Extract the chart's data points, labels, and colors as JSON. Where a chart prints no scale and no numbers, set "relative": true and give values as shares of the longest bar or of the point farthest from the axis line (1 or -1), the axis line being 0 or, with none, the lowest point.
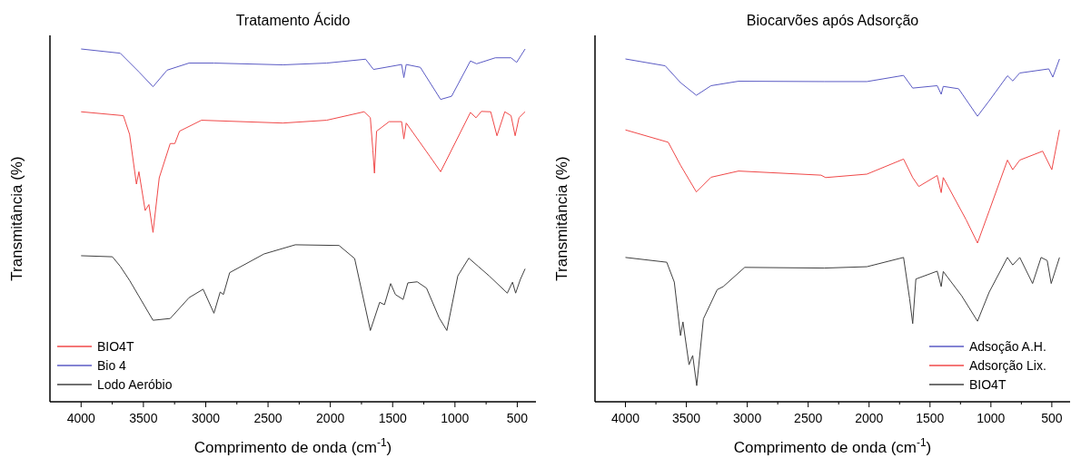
{
  "chart_data": [
    {
      "type": "line",
      "title": "Tratamento Ácido",
      "xlabel": "Comprimento de onda (cm$^{-1}$)",
      "ylabel": "Transmitância (%)",
      "relative": true,
      "legend": "bottom left",
      "marker": "none",
      "line_style": "solid",
      "grid": false,
      "xlim": [
        4250,
        350
      ],
      "xticks": [
        4000,
        {
          "value": 3750,
          "label": null
        },
        3500,
        {
          "value": 3250,
          "label": null
        },
        3000,
        {
          "value": 2750,
          "label": null
        },
        2500,
        {
          "value": 2250,
          "label": null
        },
        2000,
        {
          "value": 1750,
          "label": null
        },
        1500,
        {
          "value": 1250,
          "label": null
        },
        1000,
        {
          "value": 750,
          "label": null
        },
        500
      ],
      "series": [
        {
          "name": "BIO4T",
          "color": "#f04848",
          "x": [
            4000,
            3661,
            3611,
            3556,
            3536,
            3486,
            3456,
            3423,
            3373,
            3285,
            3248,
            3210,
            3034,
            2382,
            2030,
            1729,
            1679,
            1659,
            1646,
            1629,
            1528,
            1428,
            1410,
            1391,
            1202,
            1115,
            876,
            831,
            788,
            713,
            663,
            600,
            550,
            517,
            486,
            437
          ],
          "values": [
            0.822,
            0.811,
            0.758,
            0.617,
            0.652,
            0.542,
            0.559,
            0.48,
            0.635,
            0.732,
            0.732,
            0.767,
            0.798,
            0.79,
            0.798,
            0.822,
            0.805,
            0.714,
            0.648,
            0.767,
            0.794,
            0.794,
            0.745,
            0.79,
            0.696,
            0.652,
            0.82,
            0.805,
            0.823,
            0.822,
            0.754,
            0.822,
            0.811,
            0.754,
            0.805,
            0.822
          ]
        },
        {
          "name": "Bio 4",
          "color": "#5a5ac4",
          "x": [
            4000,
            3686,
            3536,
            3423,
            3310,
            3134,
            2934,
            2382,
            2030,
            1717,
            1654,
            1604,
            1428,
            1410,
            1391,
            1278,
            1115,
            1027,
            876,
            826,
            676,
            550,
            505,
            437
          ],
          "values": [
            1.0,
            0.988,
            0.935,
            0.893,
            0.94,
            0.96,
            0.96,
            0.955,
            0.96,
            0.971,
            0.942,
            0.945,
            0.956,
            0.919,
            0.956,
            0.948,
            0.857,
            0.866,
            0.966,
            0.958,
            0.975,
            0.975,
            0.962,
            1.0
          ]
        },
        {
          "name": "Lodo Aeróbio",
          "color": "#404040",
          "x": [
            4000,
            3749,
            3686,
            3611,
            3423,
            3285,
            3134,
            3021,
            2934,
            2884,
            2858,
            2808,
            2532,
            2281,
            1930,
            1805,
            1679,
            1604,
            1566,
            1516,
            1478,
            1416,
            1378,
            1303,
            1228,
            1127,
            1065,
            977,
            889,
            814,
            726,
            580,
            538,
            513,
            475,
            437
          ],
          "values": [
            0.414,
            0.411,
            0.384,
            0.344,
            0.231,
            0.236,
            0.295,
            0.319,
            0.251,
            0.311,
            0.304,
            0.366,
            0.419,
            0.445,
            0.443,
            0.406,
            0.202,
            0.282,
            0.275,
            0.335,
            0.304,
            0.29,
            0.337,
            0.34,
            0.322,
            0.238,
            0.202,
            0.357,
            0.407,
            0.384,
            0.357,
            0.308,
            0.339,
            0.308,
            0.347,
            0.377
          ]
        }
      ]
    },
    {
      "type": "line",
      "title": "Biocarvões após Adsorção",
      "xlabel": "Comprimento de onda (cm$^{-1}$)",
      "ylabel": "Transmitância (%)",
      "relative": true,
      "legend": "bottom right",
      "marker": "none",
      "line_style": "solid",
      "grid": false,
      "xlim": [
        4250,
        350
      ],
      "xticks": [
        4000,
        {
          "value": 3750,
          "label": null
        },
        3500,
        {
          "value": 3250,
          "label": null
        },
        3000,
        {
          "value": 2750,
          "label": null
        },
        2500,
        {
          "value": 2250,
          "label": null
        },
        2000,
        {
          "value": 1750,
          "label": null
        },
        1500,
        {
          "value": 1250,
          "label": null
        },
        1000,
        {
          "value": 750,
          "label": null
        },
        500
      ],
      "series": [
        {
          "name": "Adsoção A.H.",
          "color": "#5a5ac4",
          "x": [
            4000,
            3674,
            3548,
            3418,
            3297,
            3072,
            2369,
            2018,
            1717,
            1642,
            1441,
            1408,
            1391,
            1265,
            1110,
            1014,
            864,
            821,
            763,
            525,
            492,
            437
          ],
          "values": [
            1.0,
            0.98,
            0.931,
            0.894,
            0.922,
            0.935,
            0.934,
            0.934,
            0.952,
            0.915,
            0.922,
            0.897,
            0.92,
            0.913,
            0.833,
            0.878,
            0.951,
            0.936,
            0.959,
            0.971,
            0.947,
            1.0
          ]
        },
        {
          "name": "Adsorção Lix.",
          "color": "#f04848",
          "x": [
            4000,
            3649,
            3548,
            3418,
            3297,
            3072,
            2394,
            2357,
            2018,
            1717,
            1642,
            1592,
            1441,
            1408,
            1391,
            1202,
            1110,
            1014,
            864,
            821,
            763,
            575,
            500,
            437
          ],
          "values": [
            0.793,
            0.757,
            0.69,
            0.612,
            0.655,
            0.673,
            0.661,
            0.654,
            0.664,
            0.708,
            0.654,
            0.628,
            0.66,
            0.61,
            0.654,
            0.53,
            0.463,
            0.557,
            0.705,
            0.677,
            0.705,
            0.731,
            0.677,
            0.793
          ]
        },
        {
          "name": "BIO4T",
          "color": "#404040",
          "x": [
            4000,
            3661,
            3599,
            3548,
            3528,
            3478,
            3448,
            3415,
            3360,
            3247,
            3197,
            3021,
            2369,
            2018,
            1717,
            1667,
            1642,
            1616,
            1441,
            1408,
            1391,
            1240,
            1110,
            1014,
            864,
            821,
            763,
            658,
            588,
            538,
            505,
            437
          ],
          "values": [
            0.421,
            0.407,
            0.349,
            0.193,
            0.233,
            0.108,
            0.135,
            0.047,
            0.242,
            0.327,
            0.336,
            0.392,
            0.39,
            0.394,
            0.421,
            0.3,
            0.228,
            0.358,
            0.381,
            0.336,
            0.38,
            0.309,
            0.235,
            0.32,
            0.421,
            0.399,
            0.421,
            0.345,
            0.421,
            0.412,
            0.345,
            0.421
          ]
        }
      ]
    }
  ]
}
